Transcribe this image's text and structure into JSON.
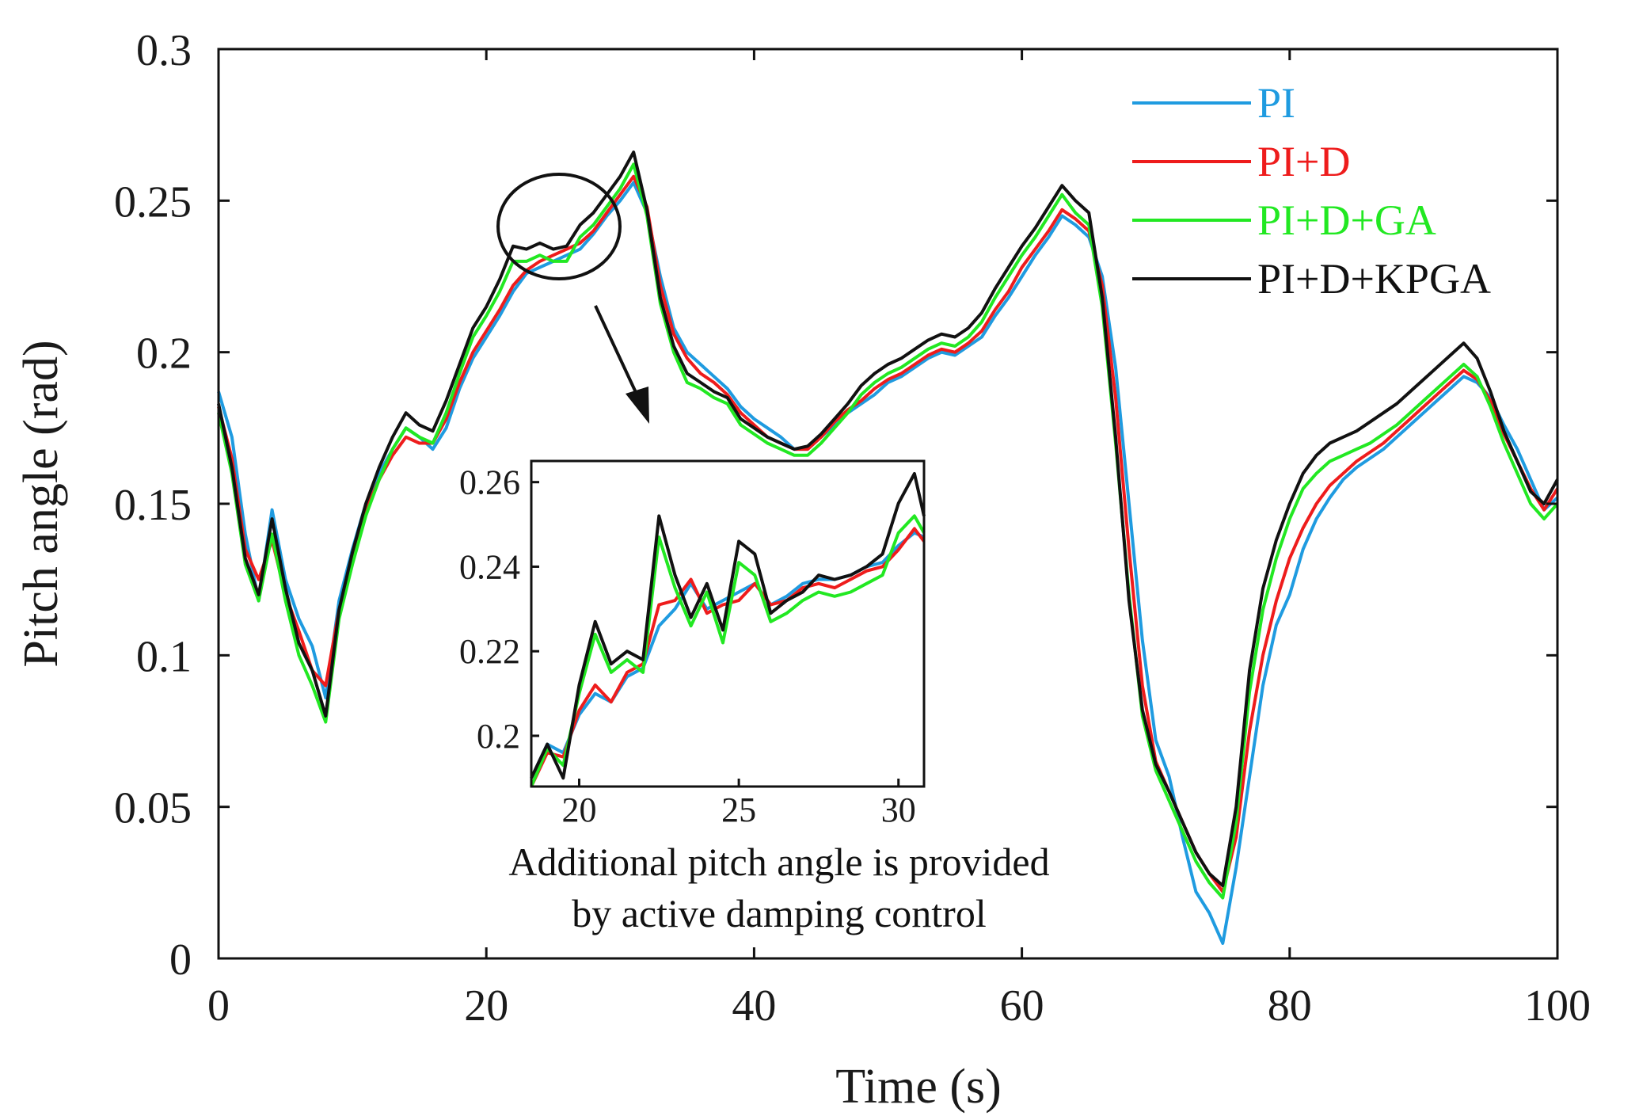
{
  "chart_data": {
    "type": "line",
    "xlabel": "Time (s)",
    "ylabel": "Pitch angle (rad)",
    "xlim": [
      0,
      100
    ],
    "ylim": [
      0,
      0.3
    ],
    "xticks": [
      "0",
      "20",
      "40",
      "60",
      "80",
      "100"
    ],
    "yticks": [
      "0",
      "0.05",
      "0.1",
      "0.15",
      "0.2",
      "0.25",
      "0.3"
    ],
    "legend_position": "top-right",
    "series": [
      {
        "name": "PI",
        "color": "#1f9be0",
        "x": [
          0,
          1,
          2,
          3,
          4,
          5,
          6,
          7,
          8,
          9,
          10,
          11,
          12,
          13,
          14,
          15,
          16,
          17,
          18,
          19,
          20,
          21,
          22,
          23,
          24,
          25,
          26,
          27,
          28,
          29,
          30,
          31,
          32,
          33,
          34,
          35,
          36,
          37,
          38,
          39,
          40,
          41,
          42,
          43,
          44,
          45,
          46,
          47,
          48,
          49,
          50,
          51,
          52,
          53,
          54,
          55,
          56,
          57,
          58,
          59,
          60,
          61,
          62,
          63,
          64,
          65,
          66,
          67,
          68,
          69,
          70,
          71,
          72,
          73,
          74,
          75,
          76,
          77,
          78,
          79,
          80,
          81,
          82,
          83,
          84,
          85,
          86,
          87,
          88,
          89,
          90,
          91,
          92,
          93,
          94,
          95,
          96,
          97,
          98,
          99,
          100
        ],
        "values": [
          0.187,
          0.172,
          0.14,
          0.118,
          0.148,
          0.125,
          0.112,
          0.103,
          0.086,
          0.118,
          0.135,
          0.15,
          0.16,
          0.168,
          0.175,
          0.172,
          0.168,
          0.175,
          0.188,
          0.198,
          0.205,
          0.212,
          0.22,
          0.226,
          0.228,
          0.23,
          0.232,
          0.234,
          0.239,
          0.245,
          0.25,
          0.256,
          0.246,
          0.225,
          0.208,
          0.2,
          0.196,
          0.192,
          0.188,
          0.182,
          0.178,
          0.175,
          0.172,
          0.168,
          0.168,
          0.172,
          0.176,
          0.18,
          0.183,
          0.186,
          0.19,
          0.192,
          0.195,
          0.198,
          0.2,
          0.199,
          0.202,
          0.205,
          0.212,
          0.218,
          0.225,
          0.232,
          0.238,
          0.245,
          0.242,
          0.238,
          0.225,
          0.195,
          0.15,
          0.105,
          0.072,
          0.06,
          0.04,
          0.022,
          0.015,
          0.005,
          0.03,
          0.06,
          0.09,
          0.11,
          0.12,
          0.135,
          0.145,
          0.152,
          0.158,
          0.162,
          0.165,
          0.168,
          0.172,
          0.176,
          0.18,
          0.184,
          0.188,
          0.192,
          0.19,
          0.185,
          0.176,
          0.168,
          0.158,
          0.148,
          0.152
        ]
      },
      {
        "name": "PI+D",
        "color": "#ee1c1c",
        "x": [
          0,
          1,
          2,
          3,
          4,
          5,
          6,
          7,
          8,
          9,
          10,
          11,
          12,
          13,
          14,
          15,
          16,
          17,
          18,
          19,
          20,
          21,
          22,
          23,
          24,
          25,
          26,
          27,
          28,
          29,
          30,
          31,
          32,
          33,
          34,
          35,
          36,
          37,
          38,
          39,
          40,
          41,
          42,
          43,
          44,
          45,
          46,
          47,
          48,
          49,
          50,
          51,
          52,
          53,
          54,
          55,
          56,
          57,
          58,
          59,
          60,
          61,
          62,
          63,
          64,
          65,
          66,
          67,
          68,
          69,
          70,
          71,
          72,
          73,
          74,
          75,
          76,
          77,
          78,
          79,
          80,
          81,
          82,
          83,
          84,
          85,
          86,
          87,
          88,
          89,
          90,
          91,
          92,
          93,
          94,
          95,
          96,
          97,
          98,
          99,
          100
        ],
        "values": [
          0.182,
          0.165,
          0.135,
          0.125,
          0.138,
          0.12,
          0.108,
          0.095,
          0.09,
          0.115,
          0.132,
          0.148,
          0.158,
          0.166,
          0.172,
          0.17,
          0.17,
          0.178,
          0.19,
          0.2,
          0.207,
          0.214,
          0.222,
          0.227,
          0.23,
          0.232,
          0.234,
          0.236,
          0.24,
          0.246,
          0.252,
          0.258,
          0.248,
          0.222,
          0.206,
          0.198,
          0.193,
          0.19,
          0.186,
          0.18,
          0.176,
          0.172,
          0.17,
          0.168,
          0.168,
          0.172,
          0.177,
          0.181,
          0.184,
          0.188,
          0.191,
          0.193,
          0.196,
          0.199,
          0.201,
          0.2,
          0.203,
          0.207,
          0.214,
          0.22,
          0.228,
          0.234,
          0.24,
          0.247,
          0.244,
          0.24,
          0.222,
          0.185,
          0.135,
          0.09,
          0.065,
          0.055,
          0.045,
          0.035,
          0.028,
          0.022,
          0.04,
          0.075,
          0.1,
          0.118,
          0.132,
          0.142,
          0.15,
          0.156,
          0.16,
          0.164,
          0.167,
          0.17,
          0.174,
          0.178,
          0.182,
          0.186,
          0.19,
          0.194,
          0.191,
          0.184,
          0.173,
          0.164,
          0.155,
          0.148,
          0.155
        ]
      },
      {
        "name": "PI+D+GA",
        "color": "#22e822",
        "x": [
          0,
          1,
          2,
          3,
          4,
          5,
          6,
          7,
          8,
          9,
          10,
          11,
          12,
          13,
          14,
          15,
          16,
          17,
          18,
          19,
          20,
          21,
          22,
          23,
          24,
          25,
          26,
          27,
          28,
          29,
          30,
          31,
          32,
          33,
          34,
          35,
          36,
          37,
          38,
          39,
          40,
          41,
          42,
          43,
          44,
          45,
          46,
          47,
          48,
          49,
          50,
          51,
          52,
          53,
          54,
          55,
          56,
          57,
          58,
          59,
          60,
          61,
          62,
          63,
          64,
          65,
          66,
          67,
          68,
          69,
          70,
          71,
          72,
          73,
          74,
          75,
          76,
          77,
          78,
          79,
          80,
          81,
          82,
          83,
          84,
          85,
          86,
          87,
          88,
          89,
          90,
          91,
          92,
          93,
          94,
          95,
          96,
          97,
          98,
          99,
          100
        ],
        "values": [
          0.18,
          0.16,
          0.13,
          0.118,
          0.14,
          0.118,
          0.1,
          0.09,
          0.078,
          0.112,
          0.13,
          0.146,
          0.158,
          0.168,
          0.175,
          0.172,
          0.17,
          0.18,
          0.193,
          0.205,
          0.212,
          0.22,
          0.23,
          0.23,
          0.232,
          0.23,
          0.23,
          0.238,
          0.242,
          0.248,
          0.254,
          0.262,
          0.245,
          0.216,
          0.2,
          0.19,
          0.188,
          0.185,
          0.183,
          0.176,
          0.173,
          0.17,
          0.168,
          0.166,
          0.166,
          0.17,
          0.175,
          0.18,
          0.186,
          0.19,
          0.193,
          0.195,
          0.198,
          0.201,
          0.203,
          0.202,
          0.205,
          0.21,
          0.218,
          0.225,
          0.232,
          0.238,
          0.245,
          0.252,
          0.246,
          0.242,
          0.215,
          0.17,
          0.12,
          0.08,
          0.062,
          0.052,
          0.042,
          0.032,
          0.025,
          0.02,
          0.045,
          0.088,
          0.115,
          0.132,
          0.145,
          0.155,
          0.16,
          0.164,
          0.166,
          0.168,
          0.17,
          0.173,
          0.176,
          0.18,
          0.184,
          0.188,
          0.192,
          0.196,
          0.192,
          0.182,
          0.17,
          0.16,
          0.15,
          0.145,
          0.15
        ]
      },
      {
        "name": "PI+D+KPGA",
        "color": "#111111",
        "x": [
          0,
          1,
          2,
          3,
          4,
          5,
          6,
          7,
          8,
          9,
          10,
          11,
          12,
          13,
          14,
          15,
          16,
          17,
          18,
          19,
          20,
          21,
          22,
          23,
          24,
          25,
          26,
          27,
          28,
          29,
          30,
          31,
          32,
          33,
          34,
          35,
          36,
          37,
          38,
          39,
          40,
          41,
          42,
          43,
          44,
          45,
          46,
          47,
          48,
          49,
          50,
          51,
          52,
          53,
          54,
          55,
          56,
          57,
          58,
          59,
          60,
          61,
          62,
          63,
          64,
          65,
          66,
          67,
          68,
          69,
          70,
          71,
          72,
          73,
          74,
          75,
          76,
          77,
          78,
          79,
          80,
          81,
          82,
          83,
          84,
          85,
          86,
          87,
          88,
          89,
          90,
          91,
          92,
          93,
          94,
          95,
          96,
          97,
          98,
          99,
          100
        ],
        "values": [
          0.183,
          0.162,
          0.132,
          0.12,
          0.145,
          0.122,
          0.104,
          0.095,
          0.08,
          0.115,
          0.134,
          0.15,
          0.162,
          0.172,
          0.18,
          0.176,
          0.174,
          0.184,
          0.196,
          0.208,
          0.215,
          0.224,
          0.235,
          0.234,
          0.236,
          0.234,
          0.235,
          0.242,
          0.246,
          0.252,
          0.258,
          0.266,
          0.247,
          0.218,
          0.202,
          0.193,
          0.19,
          0.187,
          0.185,
          0.178,
          0.175,
          0.172,
          0.17,
          0.168,
          0.169,
          0.173,
          0.178,
          0.183,
          0.189,
          0.193,
          0.196,
          0.198,
          0.201,
          0.204,
          0.206,
          0.205,
          0.208,
          0.213,
          0.221,
          0.228,
          0.235,
          0.241,
          0.248,
          0.255,
          0.25,
          0.246,
          0.218,
          0.172,
          0.118,
          0.082,
          0.064,
          0.055,
          0.045,
          0.035,
          0.028,
          0.024,
          0.05,
          0.095,
          0.122,
          0.138,
          0.15,
          0.16,
          0.166,
          0.17,
          0.172,
          0.174,
          0.177,
          0.18,
          0.183,
          0.187,
          0.191,
          0.195,
          0.199,
          0.203,
          0.198,
          0.187,
          0.174,
          0.164,
          0.154,
          0.15,
          0.158
        ]
      }
    ],
    "inset": {
      "xlim": [
        18.5,
        30.8
      ],
      "ylim": [
        0.188,
        0.265
      ],
      "xticks": [
        "20",
        "25",
        "30"
      ],
      "yticks": [
        "0.2",
        "0.22",
        "0.24",
        "0.26"
      ],
      "x": [
        18.5,
        19,
        19.5,
        20,
        20.5,
        21,
        21.5,
        22,
        22.5,
        23,
        23.5,
        24,
        24.5,
        25,
        25.5,
        26,
        26.5,
        27,
        27.5,
        28,
        28.5,
        29,
        29.5,
        30,
        30.5,
        30.8
      ],
      "series": [
        {
          "name": "PI",
          "values": [
            0.19,
            0.198,
            0.196,
            0.205,
            0.21,
            0.208,
            0.214,
            0.216,
            0.226,
            0.23,
            0.236,
            0.23,
            0.232,
            0.234,
            0.236,
            0.231,
            0.233,
            0.236,
            0.237,
            0.237,
            0.238,
            0.24,
            0.241,
            0.245,
            0.248,
            0.247
          ]
        },
        {
          "name": "PI+D",
          "values": [
            0.188,
            0.196,
            0.195,
            0.206,
            0.212,
            0.208,
            0.215,
            0.217,
            0.231,
            0.232,
            0.237,
            0.229,
            0.231,
            0.232,
            0.236,
            0.231,
            0.232,
            0.235,
            0.236,
            0.235,
            0.237,
            0.239,
            0.24,
            0.244,
            0.249,
            0.246
          ]
        },
        {
          "name": "PI+D+GA",
          "values": [
            0.188,
            0.197,
            0.193,
            0.21,
            0.224,
            0.215,
            0.218,
            0.215,
            0.247,
            0.235,
            0.226,
            0.234,
            0.222,
            0.241,
            0.238,
            0.227,
            0.229,
            0.232,
            0.234,
            0.233,
            0.234,
            0.236,
            0.238,
            0.248,
            0.252,
            0.248
          ]
        },
        {
          "name": "PI+D+KPGA",
          "values": [
            0.19,
            0.198,
            0.19,
            0.212,
            0.227,
            0.217,
            0.22,
            0.218,
            0.252,
            0.238,
            0.228,
            0.236,
            0.225,
            0.246,
            0.243,
            0.229,
            0.232,
            0.234,
            0.238,
            0.237,
            0.238,
            0.24,
            0.243,
            0.255,
            0.262,
            0.252
          ]
        }
      ]
    },
    "annotation": {
      "line1": "Additional pitch angle is provided",
      "line2": "by active damping control"
    }
  }
}
